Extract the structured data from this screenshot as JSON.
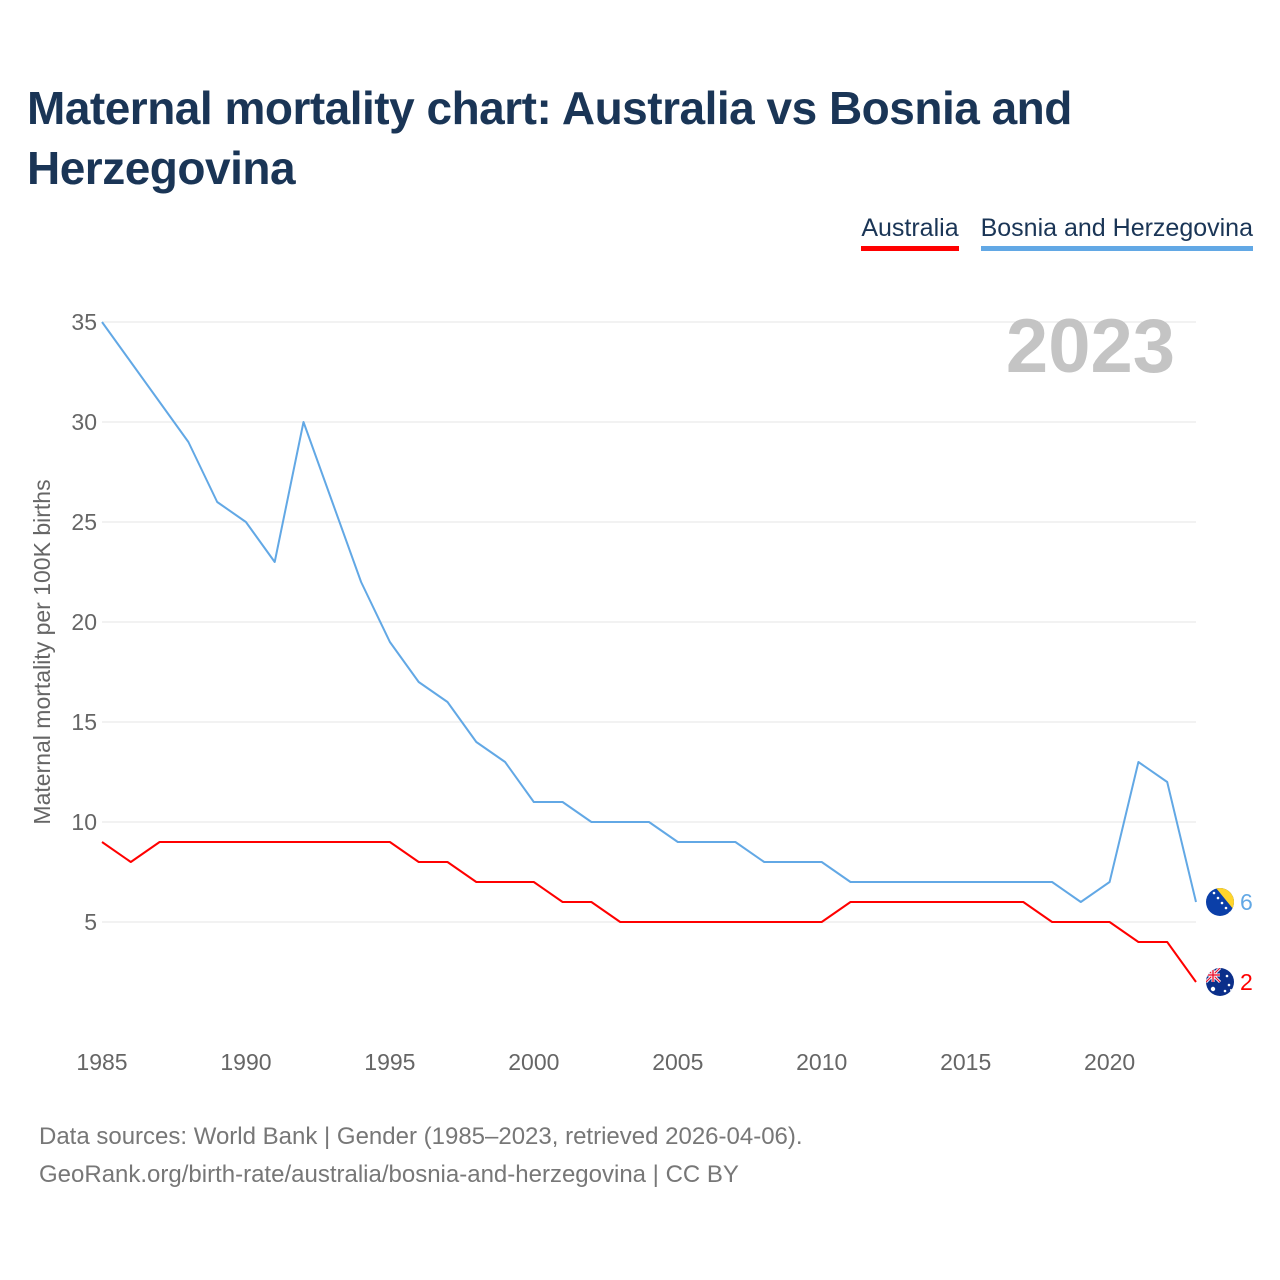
{
  "title": "Maternal mortality chart: Australia vs Bosnia and Herzegovina",
  "legend": [
    "Australia",
    "Bosnia and Herzegovina"
  ],
  "year_overlay": "2023",
  "footer": {
    "source": "Data sources: World Bank | Gender (1985–2023, retrieved 2026-04-06).",
    "credit": "GeoRank.org/birth-rate/australia/bosnia-and-herzegovina | CC BY"
  },
  "colors": {
    "australia": "#ff0000",
    "bosnia": "#62a8e5",
    "title": "#1a3556",
    "grid": "#e6e6e6"
  },
  "chart_data": {
    "type": "line",
    "title": "Maternal mortality chart: Australia vs Bosnia and Herzegovina",
    "xlabel": "",
    "ylabel": "Maternal mortality per 100K births",
    "xlim": [
      1985,
      2023
    ],
    "ylim": [
      0,
      35
    ],
    "x_ticks": [
      1985,
      1990,
      1995,
      2000,
      2005,
      2010,
      2015,
      2020
    ],
    "y_ticks": [
      5,
      10,
      15,
      20,
      25,
      30,
      35
    ],
    "grid": true,
    "legend_position": "top-right",
    "x": [
      1985,
      1986,
      1987,
      1988,
      1989,
      1990,
      1991,
      1992,
      1993,
      1994,
      1995,
      1996,
      1997,
      1998,
      1999,
      2000,
      2001,
      2002,
      2003,
      2004,
      2005,
      2006,
      2007,
      2008,
      2009,
      2010,
      2011,
      2012,
      2013,
      2014,
      2015,
      2016,
      2017,
      2018,
      2019,
      2020,
      2021,
      2022,
      2023
    ],
    "series": [
      {
        "name": "Australia",
        "color": "#ff0000",
        "end_label": "2",
        "values": [
          9,
          8,
          9,
          9,
          9,
          9,
          9,
          9,
          9,
          9,
          9,
          8,
          8,
          7,
          7,
          7,
          6,
          6,
          5,
          5,
          5,
          5,
          5,
          5,
          5,
          5,
          6,
          6,
          6,
          6,
          6,
          6,
          6,
          5,
          5,
          5,
          4,
          4,
          2
        ]
      },
      {
        "name": "Bosnia and Herzegovina",
        "color": "#62a8e5",
        "end_label": "6",
        "values": [
          35,
          33,
          31,
          29,
          26,
          25,
          23,
          30,
          26,
          22,
          19,
          17,
          16,
          14,
          13,
          11,
          11,
          10,
          10,
          10,
          9,
          9,
          9,
          8,
          8,
          8,
          7,
          7,
          7,
          7,
          7,
          7,
          7,
          7,
          6,
          7,
          13,
          12,
          6
        ]
      }
    ]
  }
}
